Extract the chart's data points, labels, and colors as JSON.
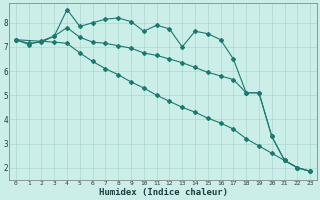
{
  "xlabel": "Humidex (Indice chaleur)",
  "background_color": "#cceee8",
  "grid_color": "#aad8d0",
  "line_color": "#1a7a6e",
  "xlim": [
    -0.5,
    23.5
  ],
  "ylim": [
    1.5,
    8.8
  ],
  "yticks": [
    2,
    3,
    4,
    5,
    6,
    7,
    8
  ],
  "xticks": [
    0,
    1,
    2,
    3,
    4,
    5,
    6,
    7,
    8,
    9,
    10,
    11,
    12,
    13,
    14,
    15,
    16,
    17,
    18,
    19,
    20,
    21,
    22,
    23
  ],
  "series1_x": [
    0,
    1,
    2,
    3,
    4,
    5,
    6,
    7,
    8,
    9,
    10,
    11,
    12,
    13,
    14,
    15,
    16,
    17,
    18,
    19,
    20,
    21,
    22,
    23
  ],
  "series1_y": [
    7.3,
    7.1,
    7.25,
    7.45,
    8.55,
    7.85,
    8.0,
    8.15,
    8.2,
    8.05,
    7.65,
    7.9,
    7.75,
    7.0,
    7.65,
    7.55,
    7.3,
    6.5,
    5.1,
    5.1,
    3.3,
    2.3,
    2.0,
    1.85
  ],
  "series2_x": [
    0,
    1,
    2,
    3,
    4,
    5,
    6,
    7,
    8,
    9,
    10,
    11,
    12,
    13,
    14,
    15,
    16,
    17,
    18,
    19,
    20,
    21,
    22,
    23
  ],
  "series2_y": [
    7.3,
    7.15,
    7.2,
    7.45,
    7.8,
    7.4,
    7.2,
    7.15,
    7.05,
    6.95,
    6.75,
    6.65,
    6.5,
    6.35,
    6.15,
    5.95,
    5.8,
    5.65,
    5.1,
    5.1,
    3.3,
    2.3,
    2.0,
    1.85
  ],
  "series3_x": [
    0,
    3,
    4,
    5,
    6,
    7,
    8,
    9,
    10,
    11,
    12,
    13,
    14,
    15,
    16,
    17,
    18,
    19,
    20,
    21,
    22,
    23
  ],
  "series3_y": [
    7.3,
    7.2,
    7.15,
    6.75,
    6.4,
    6.1,
    5.85,
    5.55,
    5.3,
    5.0,
    4.75,
    4.5,
    4.3,
    4.05,
    3.85,
    3.6,
    3.2,
    2.9,
    2.6,
    2.3,
    2.0,
    1.85
  ]
}
